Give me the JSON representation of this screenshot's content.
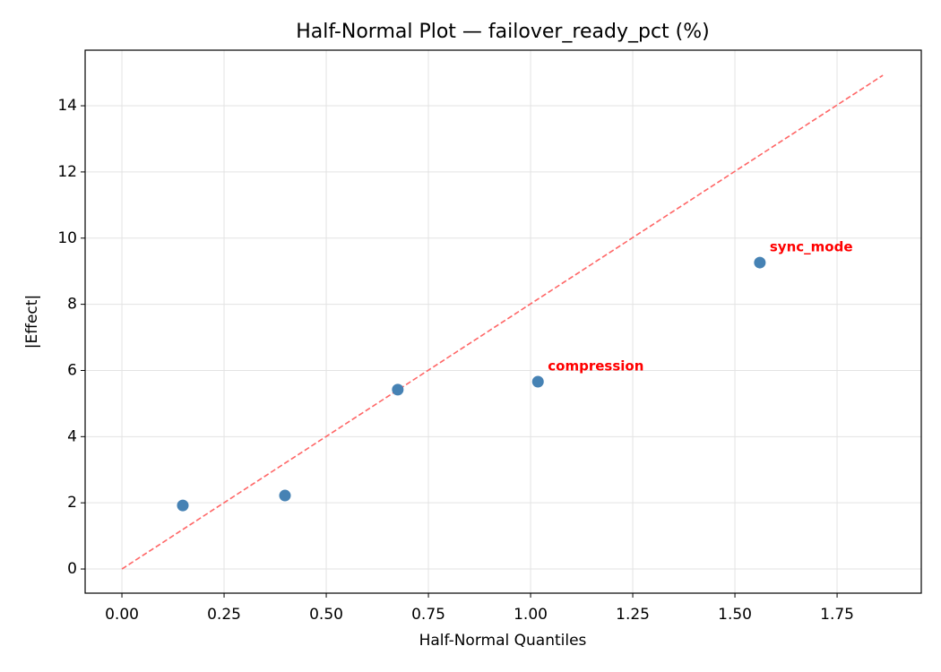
{
  "chart_data": {
    "type": "scatter",
    "title": "Half-Normal Plot — failover_ready_pct (%)",
    "x_label": "Half-Normal Quantiles",
    "y_label": "|Effect|",
    "x": [
      0.149,
      0.399,
      0.675,
      1.018,
      1.561
    ],
    "values": [
      1.92,
      2.22,
      5.42,
      5.66,
      9.26
    ],
    "color": "#4682b4",
    "point_labels": [
      null,
      null,
      null,
      "compression",
      "sync_mode"
    ],
    "point_label_color": "#ff0000",
    "reference_line": {
      "x": [
        0,
        1.862
      ],
      "y": [
        0,
        14.92
      ],
      "color": "#ff6666",
      "dashed": true
    },
    "xlim": [
      -0.09,
      1.956
    ],
    "ylim": [
      -0.73,
      15.68
    ],
    "xticks": [
      {
        "value": 0,
        "label": "0.00"
      },
      0.25,
      {
        "value": 0.5,
        "label": "0.50"
      },
      0.75,
      {
        "value": 1,
        "label": "1.00"
      },
      1.25,
      {
        "value": 1.5,
        "label": "1.50"
      },
      1.75
    ],
    "yticks": [
      0,
      2,
      4,
      6,
      8,
      10,
      12,
      14
    ],
    "grid": true
  }
}
